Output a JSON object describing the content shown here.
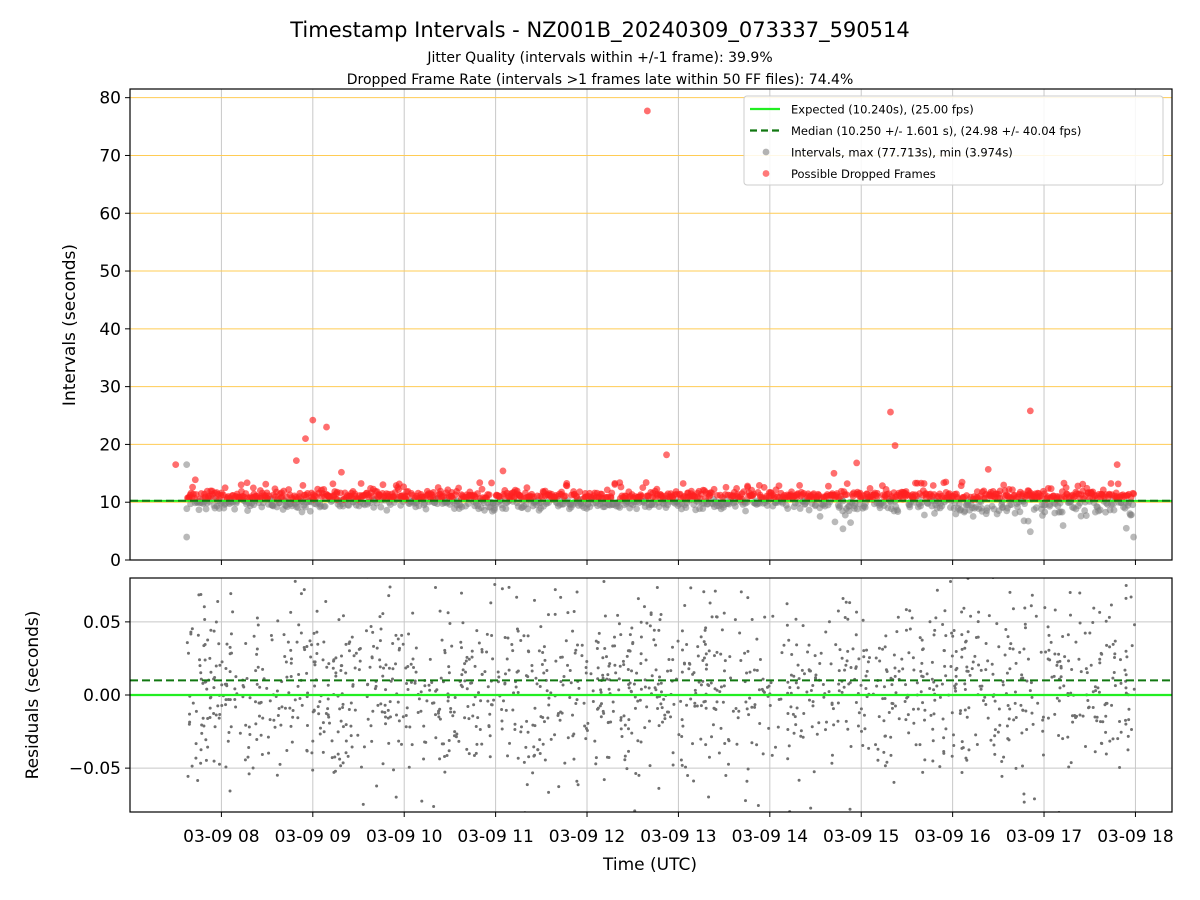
{
  "chart_data": [
    {
      "type": "scatter",
      "title": "Timestamp Intervals - NZ001B_20240309_073337_590514",
      "subtitle_lines": [
        "Jitter Quality (intervals within +/-1 frame): 39.9%",
        "Dropped Frame Rate (intervals >1 frames late within 50 FF files): 74.4%"
      ],
      "ylabel": "Intervals (seconds)",
      "ylim": [
        0,
        81.5
      ],
      "yticks": [
        "0",
        "10",
        "20",
        "30",
        "40",
        "50",
        "60",
        "70",
        "80"
      ],
      "x_hours_range": [
        7.0,
        18.4
      ],
      "expected": 10.24,
      "median": 10.25,
      "threshold_lines": [
        10,
        20,
        30,
        40,
        50,
        60,
        70,
        80
      ],
      "legend_position": "top-right",
      "legend": [
        {
          "label": "Expected (10.240s), (25.00 fps)",
          "kind": "line",
          "color": "#22ee22"
        },
        {
          "label": "Median (10.250 +/- 1.601 s), (24.98 +/- 40.04 fps)",
          "kind": "dashed",
          "color": "#117711"
        },
        {
          "label": "Intervals, max (77.713s), min (3.974s)",
          "kind": "dot",
          "color": "#808080"
        },
        {
          "label": "Possible Dropped Frames",
          "kind": "dot",
          "color": "#ff2020"
        }
      ],
      "series": [
        {
          "name": "Intervals, max (77.713s), min (3.974s)",
          "color": "#808080",
          "summary": {
            "max": 77.713,
            "min": 3.974,
            "median": 10.25
          }
        },
        {
          "name": "Possible Dropped Frames",
          "color": "#ff2020",
          "notable_points": [
            {
              "t": 12.66,
              "y": 77.7
            },
            {
              "t": 9.0,
              "y": 24.2
            },
            {
              "t": 8.92,
              "y": 21.0
            },
            {
              "t": 9.15,
              "y": 23.0
            },
            {
              "t": 8.82,
              "y": 17.2
            },
            {
              "t": 12.87,
              "y": 18.2
            },
            {
              "t": 15.32,
              "y": 25.6
            },
            {
              "t": 15.37,
              "y": 19.8
            },
            {
              "t": 16.85,
              "y": 25.8
            },
            {
              "t": 7.5,
              "y": 16.5
            },
            {
              "t": 14.95,
              "y": 16.8
            },
            {
              "t": 17.8,
              "y": 16.5
            }
          ]
        }
      ]
    },
    {
      "type": "scatter",
      "ylabel": "Residuals (seconds)",
      "xlabel": "Time (UTC)",
      "ylim": [
        -0.08,
        0.08
      ],
      "yticks": [
        "0.05",
        "0.00",
        "−0.05"
      ],
      "xticks": [
        "03-09 08",
        "03-09 09",
        "03-09 10",
        "03-09 11",
        "03-09 12",
        "03-09 13",
        "03-09 14",
        "03-09 15",
        "03-09 16",
        "03-09 17",
        "03-09 18"
      ],
      "expected_residual": 0.0,
      "median_residual": 0.01,
      "series": [
        {
          "color": "#707070",
          "summary": {
            "range": [
              -0.08,
              0.08
            ]
          }
        }
      ]
    }
  ]
}
